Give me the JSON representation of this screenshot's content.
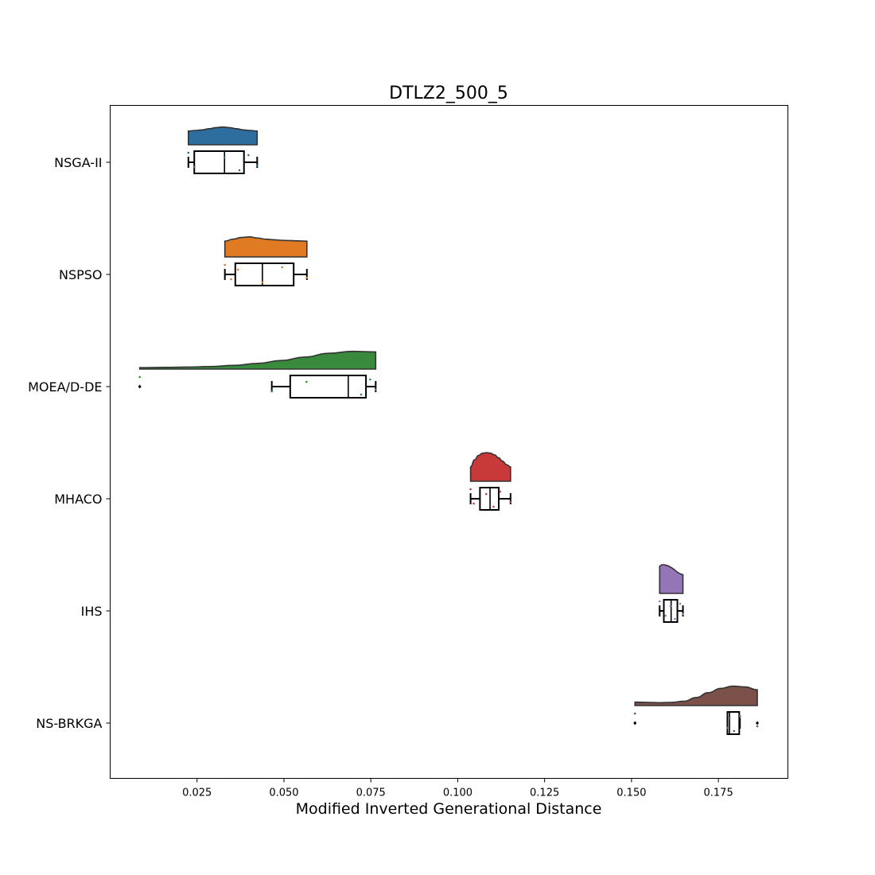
{
  "chart_data": {
    "type": "raincloud",
    "title": "DTLZ2_500_5",
    "xlabel": "Modified Inverted Generational Distance",
    "ylabel": "",
    "xlim": [
      0.0,
      0.195
    ],
    "xticks": [
      "0.025",
      "0.050",
      "0.075",
      "0.100",
      "0.125",
      "0.150",
      "0.175"
    ],
    "xtick_values": [
      0.025,
      0.05,
      0.075,
      0.1,
      0.125,
      0.15,
      0.175
    ],
    "grid": false,
    "categories": [
      "NSGA-II",
      "NSPSO",
      "MOEA/D-DE",
      "MHACO",
      "IHS",
      "NS-BRKGA"
    ],
    "series": [
      {
        "name": "NSGA-II",
        "color": "#2e6e9e",
        "box": {
          "whisker_low": 0.0225,
          "q1": 0.0242,
          "median": 0.0329,
          "q3": 0.0385,
          "whisker_high": 0.0423
        },
        "points": [
          0.0225,
          0.0242,
          0.0329,
          0.0372,
          0.0398,
          0.0423
        ],
        "density": [
          0.48,
          0.5,
          0.52,
          0.56,
          0.6,
          0.62,
          0.6,
          0.56,
          0.52,
          0.5,
          0.48
        ]
      },
      {
        "name": "NSPSO",
        "color": "#e07b24",
        "box": {
          "whisker_low": 0.033,
          "q1": 0.036,
          "median": 0.0438,
          "q3": 0.0528,
          "whisker_high": 0.0566
        },
        "points": [
          0.033,
          0.0348,
          0.0368,
          0.0438,
          0.0495,
          0.0566
        ],
        "density": [
          0.55,
          0.62,
          0.68,
          0.7,
          0.66,
          0.62,
          0.6,
          0.58,
          0.57,
          0.56,
          0.55
        ]
      },
      {
        "name": "MOEA/D-DE",
        "color": "#3a8a3e",
        "box": {
          "whisker_low": 0.0465,
          "q1": 0.0518,
          "median": 0.0685,
          "q3": 0.0736,
          "whisker_high": 0.0764
        },
        "points": [
          0.0085,
          0.0465,
          0.0565,
          0.0722,
          0.0748,
          0.0764
        ],
        "outliers": [
          0.0085
        ],
        "density": [
          0.05,
          0.06,
          0.07,
          0.09,
          0.13,
          0.2,
          0.3,
          0.42,
          0.55,
          0.62,
          0.6
        ]
      },
      {
        "name": "MHACO",
        "color": "#c8393a",
        "box": {
          "whisker_low": 0.1037,
          "q1": 0.1064,
          "median": 0.1093,
          "q3": 0.1118,
          "whisker_high": 0.1152
        },
        "points": [
          0.1037,
          0.1046,
          0.1082,
          0.1103,
          0.1122,
          0.1152
        ],
        "density": [
          0.5,
          0.75,
          0.9,
          0.98,
          1.0,
          0.98,
          0.92,
          0.82,
          0.7,
          0.58,
          0.5
        ]
      },
      {
        "name": "IHS",
        "color": "#9475b8",
        "box": {
          "whisker_low": 0.1581,
          "q1": 0.1593,
          "median": 0.1614,
          "q3": 0.1632,
          "whisker_high": 0.1648
        },
        "points": [
          0.1581,
          0.1598,
          0.1612,
          0.1625,
          0.164,
          0.1648
        ],
        "density": [
          0.95,
          1.0,
          1.0,
          0.98,
          0.95,
          0.9,
          0.85,
          0.78,
          0.72,
          0.68,
          0.65
        ]
      },
      {
        "name": "NS-BRKGA",
        "color": "#7b5149",
        "box": {
          "whisker_low": 0.1776,
          "q1": 0.1776,
          "median": 0.1782,
          "q3": 0.181,
          "whisker_high": 0.1812
        },
        "points": [
          0.151,
          0.1776,
          0.1782,
          0.1795,
          0.1812,
          0.1862
        ],
        "outliers": [
          0.151,
          0.1862
        ],
        "density": [
          0.12,
          0.11,
          0.1,
          0.11,
          0.15,
          0.28,
          0.45,
          0.6,
          0.68,
          0.65,
          0.55
        ]
      }
    ]
  }
}
